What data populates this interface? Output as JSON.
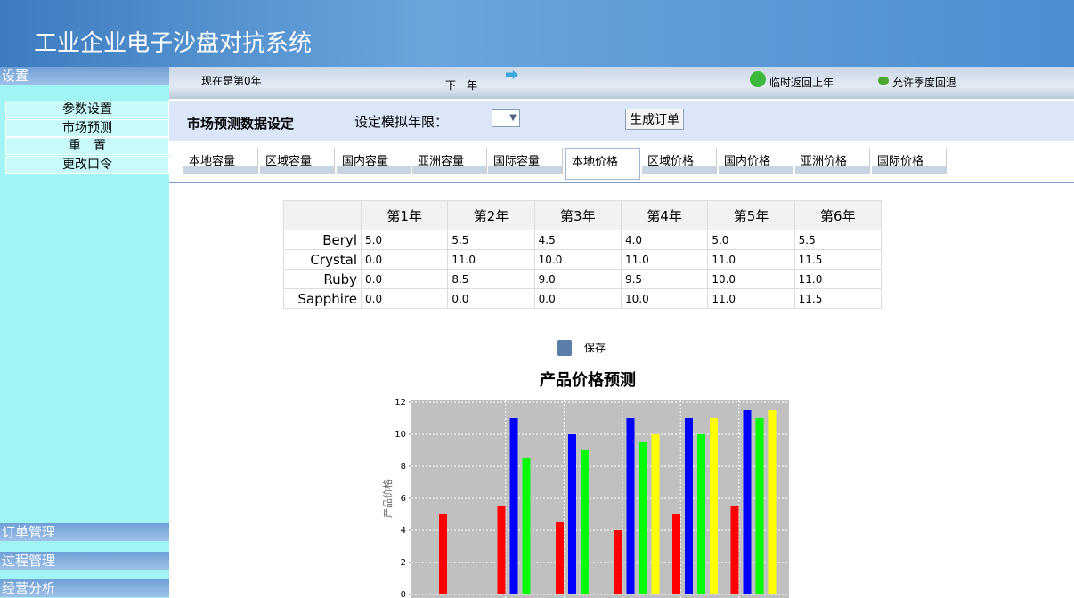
{
  "header": {
    "title": "工业企业电子沙盘对抗系统"
  },
  "sidebar": {
    "top": "设置",
    "menu": [
      "参数设置",
      "市场预测",
      "重　置",
      "更改口令"
    ],
    "sections": [
      "订单管理",
      "过程管理",
      "经营分析"
    ]
  },
  "toolbar": {
    "status": "现在是第0年",
    "next": "下一年",
    "back": "临时返回上年",
    "allow": "允许季度回退"
  },
  "form": {
    "title": "市场预测数据设定",
    "limit_label": "设定模拟年限：",
    "button": "生成订单"
  },
  "tabs": [
    "本地容量",
    "区域容量",
    "国内容量",
    "亚洲容量",
    "国际容量",
    "本地价格",
    "区域价格",
    "国内价格",
    "亚洲价格",
    "国际价格"
  ],
  "table": {
    "header": [
      "第1年",
      "第2年",
      "第3年",
      "第4年",
      "第5年",
      "第6年"
    ],
    "rows": [
      [
        "Beryl",
        "5.0",
        "5.5",
        "4.5",
        "4.0",
        "5.0",
        "5.5"
      ],
      [
        "Crystal",
        "0.0",
        "11.0",
        "10.0",
        "11.0",
        "11.0",
        "11.5"
      ],
      [
        "Ruby",
        "0.0",
        "8.5",
        "9.0",
        "9.5",
        "10.0",
        "11.0"
      ],
      [
        "Sapphire",
        "0.0",
        "0.0",
        "0.0",
        "10.0",
        "11.0",
        "11.5"
      ]
    ]
  },
  "save": "保存",
  "chart_data": {
    "type": "bar",
    "title": "产品价格预测",
    "y_label": "产品价格",
    "categories": [
      null,
      null,
      null,
      null,
      null,
      null
    ],
    "series": [
      {
        "color": "#ff0000",
        "values": [
          5,
          5.5,
          4.5,
          4,
          5,
          5.5
        ]
      },
      {
        "color": "#0000ff",
        "values": [
          0,
          11,
          10,
          11,
          11,
          11.5
        ]
      },
      {
        "color": "#00ff00",
        "values": [
          0,
          8.5,
          9,
          9.5,
          10,
          11
        ]
      },
      {
        "color": "#ffff00",
        "values": [
          0,
          0,
          0,
          10,
          11,
          11.5
        ]
      }
    ],
    "ylim": [
      0,
      12
    ],
    "yticks": [
      0,
      2,
      4,
      6,
      8,
      10,
      12
    ],
    "grid": true
  }
}
